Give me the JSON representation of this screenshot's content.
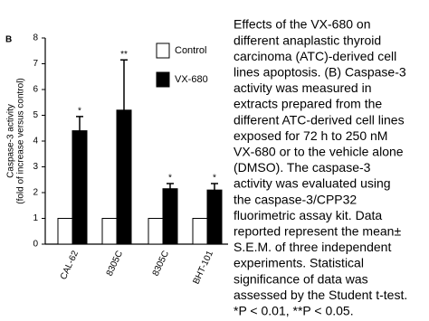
{
  "chart_data": {
    "type": "bar",
    "panel_label": "B",
    "ylabel": [
      "Caspase-3 activity",
      "(fold of increase versus control)"
    ],
    "categories": [
      "CAL-62",
      "8305C",
      "8305C",
      "BHT-101"
    ],
    "series": [
      {
        "name": "Control",
        "color": "#ffffff",
        "values": [
          1,
          1,
          1,
          1
        ]
      },
      {
        "name": "VX-680",
        "color": "#000000",
        "values": [
          4.4,
          5.2,
          2.15,
          2.1
        ],
        "errors": [
          0.55,
          1.95,
          0.2,
          0.25
        ],
        "annotations": [
          "*",
          "**",
          "*",
          "*"
        ]
      }
    ],
    "ylim": [
      0,
      8
    ],
    "yticks": [
      0,
      1,
      2,
      3,
      4,
      5,
      6,
      7,
      8
    ],
    "grid": false
  },
  "caption": [
    "Effects of the VX-680 on",
    "different anaplastic thyroid",
    "carcinoma (ATC)-derived cell",
    "lines apoptosis. (B) Caspase-3",
    "activity was measured in",
    "extracts prepared from the",
    "different ATC-derived cell lines",
    "exposed for 72 h to 250 nM",
    "VX-680 or to the vehicle alone",
    "(DMSO). The caspase-3",
    "activity was evaluated using",
    "the caspase-3/CPP32",
    "fluorimetric assay kit. Data",
    "reported represent the mean±",
    "S.E.M. of three independent",
    "experiments. Statistical",
    "significance of data was",
    "assessed by the Student t-test.",
    "*P < 0.01, **P < 0.05."
  ]
}
